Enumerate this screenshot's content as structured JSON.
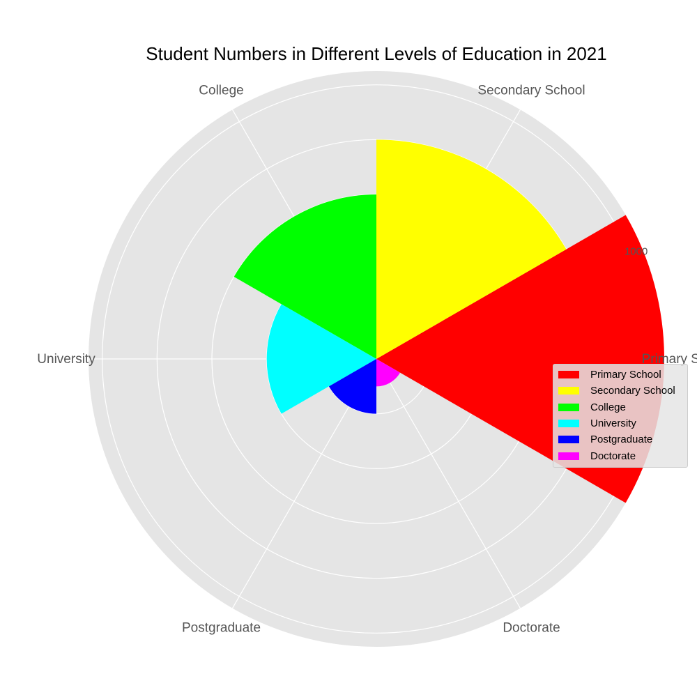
{
  "chart_data": {
    "type": "polar-bar",
    "title": "Student Numbers in Different Levels of Education in 2021",
    "categories": [
      "Primary School",
      "Secondary School",
      "College",
      "University",
      "Postgraduate",
      "Doctorate"
    ],
    "values": [
      1050,
      800,
      600,
      400,
      200,
      100
    ],
    "colors": [
      "#ff0000",
      "#ffff00",
      "#00ff00",
      "#00ffff",
      "#0000ff",
      "#ff00ff"
    ],
    "radial_tick_label": "1000",
    "radial_gridlines": 200,
    "rmax": 1050,
    "legend_placement": "right",
    "grid": true
  }
}
